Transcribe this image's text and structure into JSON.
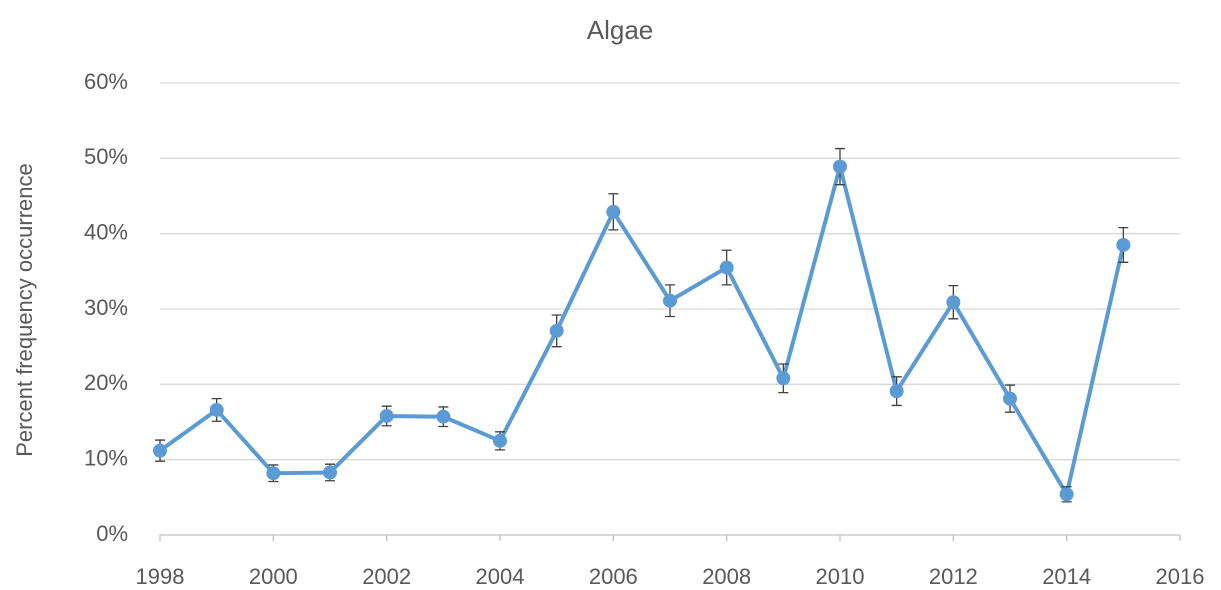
{
  "chart_data": {
    "type": "line",
    "title": "Algae",
    "y_label": "Percent frequency occurrence",
    "x": [
      1998,
      1999,
      2000,
      2001,
      2002,
      2003,
      2004,
      2005,
      2006,
      2007,
      2008,
      2009,
      2010,
      2011,
      2012,
      2013,
      2014,
      2015
    ],
    "series": [
      {
        "name": "Algae",
        "color": "#5b9bd5",
        "values": [
          11.2,
          16.6,
          8.2,
          8.3,
          15.8,
          15.7,
          12.5,
          27.1,
          42.9,
          31.1,
          35.5,
          20.8,
          48.9,
          19.1,
          30.9,
          18.1,
          5.4,
          38.5
        ],
        "errors": [
          1.4,
          1.5,
          1.1,
          1.1,
          1.3,
          1.3,
          1.2,
          2.1,
          2.4,
          2.1,
          2.3,
          1.9,
          2.4,
          1.9,
          2.2,
          1.8,
          1.0,
          2.3
        ]
      }
    ],
    "xlim": [
      1998,
      2016
    ],
    "xticks": [
      1998,
      2000,
      2002,
      2004,
      2006,
      2008,
      2010,
      2012,
      2014,
      2016
    ],
    "ylim": [
      0,
      60
    ],
    "yticks": [
      {
        "value": 0,
        "label": "0%"
      },
      {
        "value": 10,
        "label": "10%"
      },
      {
        "value": 20,
        "label": "20%"
      },
      {
        "value": 30,
        "label": "30%"
      },
      {
        "value": 40,
        "label": "40%"
      },
      {
        "value": 50,
        "label": "50%"
      },
      {
        "value": 60,
        "label": "60%"
      }
    ],
    "grid": true
  }
}
